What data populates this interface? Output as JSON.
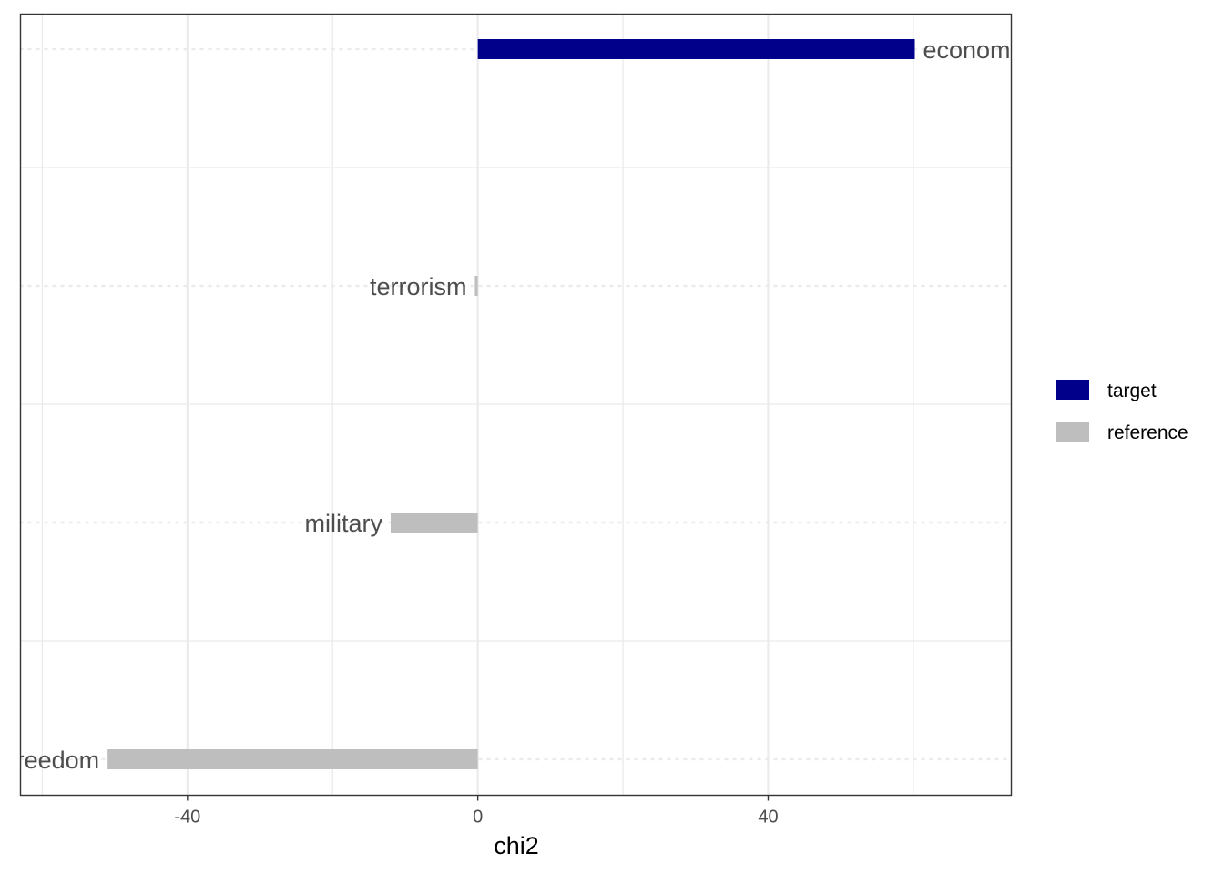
{
  "chart_data": {
    "type": "bar",
    "orientation": "horizontal",
    "xlabel": "chi2",
    "ylabel": "",
    "title": "",
    "xlim": [
      -63,
      73.5
    ],
    "x_ticks": [
      -40,
      0,
      40
    ],
    "x_tick_labels": [
      "-40",
      "0",
      "40"
    ],
    "categories": [
      "economy",
      "terrorism",
      "military",
      "freedom"
    ],
    "values": [
      60.2,
      -0.4,
      -12,
      -51
    ],
    "groups": [
      "target",
      "reference",
      "reference",
      "reference"
    ],
    "grid": true,
    "legend": {
      "position": "right",
      "entries": [
        {
          "label": "target",
          "color": "#00008b"
        },
        {
          "label": "reference",
          "color": "#bebebe"
        }
      ]
    }
  },
  "colors": {
    "target": "#00008b",
    "reference": "#bebebe",
    "grid": "#ebebeb",
    "panel_border": "#333333"
  }
}
